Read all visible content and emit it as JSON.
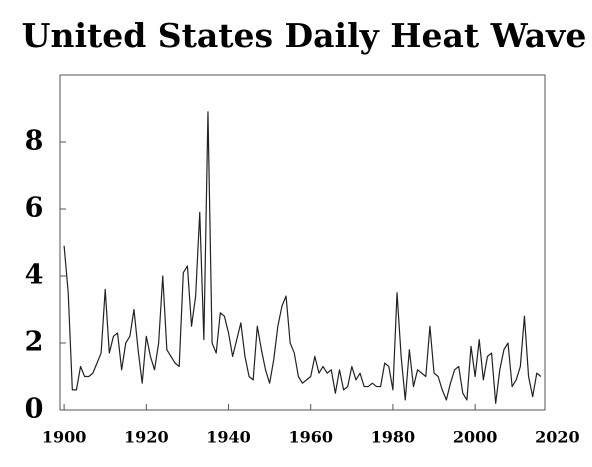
{
  "chart_data": {
    "type": "line",
    "title": "United States Daily Heat Wave",
    "x": [
      1900,
      1901,
      1902,
      1903,
      1904,
      1905,
      1906,
      1907,
      1908,
      1909,
      1910,
      1911,
      1912,
      1913,
      1914,
      1915,
      1916,
      1917,
      1918,
      1919,
      1920,
      1921,
      1922,
      1923,
      1924,
      1925,
      1926,
      1927,
      1928,
      1929,
      1930,
      1931,
      1932,
      1933,
      1934,
      1935,
      1936,
      1937,
      1938,
      1939,
      1940,
      1941,
      1942,
      1943,
      1944,
      1945,
      1946,
      1947,
      1948,
      1949,
      1950,
      1951,
      1952,
      1953,
      1954,
      1955,
      1956,
      1957,
      1958,
      1959,
      1960,
      1961,
      1962,
      1963,
      1964,
      1965,
      1966,
      1967,
      1968,
      1969,
      1970,
      1971,
      1972,
      1973,
      1974,
      1975,
      1976,
      1977,
      1978,
      1979,
      1980,
      1981,
      1982,
      1983,
      1984,
      1985,
      1986,
      1987,
      1988,
      1989,
      1990,
      1991,
      1992,
      1993,
      1994,
      1995,
      1996,
      1997,
      1998,
      1999,
      2000,
      2001,
      2002,
      2003,
      2004,
      2005,
      2006,
      2007,
      2008,
      2009,
      2010,
      2011,
      2012,
      2013,
      2014,
      2015,
      2016
    ],
    "series": [
      {
        "color": "#222222",
        "values": [
          4.9,
          3.5,
          0.6,
          0.6,
          1.3,
          1.0,
          1.0,
          1.1,
          1.4,
          1.7,
          3.6,
          1.7,
          2.2,
          2.3,
          1.2,
          2.0,
          2.2,
          3.0,
          1.8,
          0.8,
          2.2,
          1.6,
          1.2,
          2.0,
          4.0,
          1.8,
          1.6,
          1.4,
          1.3,
          4.1,
          4.3,
          2.5,
          3.4,
          5.9,
          2.1,
          8.9,
          2.0,
          1.7,
          2.9,
          2.8,
          2.3,
          1.6,
          2.1,
          2.6,
          1.6,
          1.0,
          0.9,
          2.5,
          1.8,
          1.2,
          0.8,
          1.5,
          2.5,
          3.1,
          3.4,
          2.0,
          1.7,
          1.0,
          0.8,
          0.9,
          1.0,
          1.6,
          1.1,
          1.3,
          1.1,
          1.2,
          0.5,
          1.2,
          0.6,
          0.7,
          1.3,
          0.9,
          1.1,
          0.7,
          0.7,
          0.8,
          0.7,
          0.7,
          1.4,
          1.3,
          0.6,
          3.5,
          1.6,
          0.3,
          1.8,
          0.7,
          1.2,
          1.1,
          1.0,
          2.5,
          1.1,
          1.0,
          0.6,
          0.3,
          0.8,
          1.2,
          1.3,
          0.5,
          0.3,
          1.9,
          1.0,
          2.1,
          0.9,
          1.6,
          1.7,
          0.2,
          1.2,
          1.8,
          2.0,
          0.7,
          0.9,
          1.3,
          2.8,
          1.0,
          0.4,
          1.1,
          1.0
        ]
      }
    ],
    "xlim": [
      1899,
      2017
    ],
    "xticks": [
      1900,
      1920,
      1940,
      1960,
      1980,
      2000,
      2020
    ],
    "ylim": [
      0,
      10
    ],
    "yticks": [
      0,
      2,
      4,
      6,
      8
    ]
  }
}
